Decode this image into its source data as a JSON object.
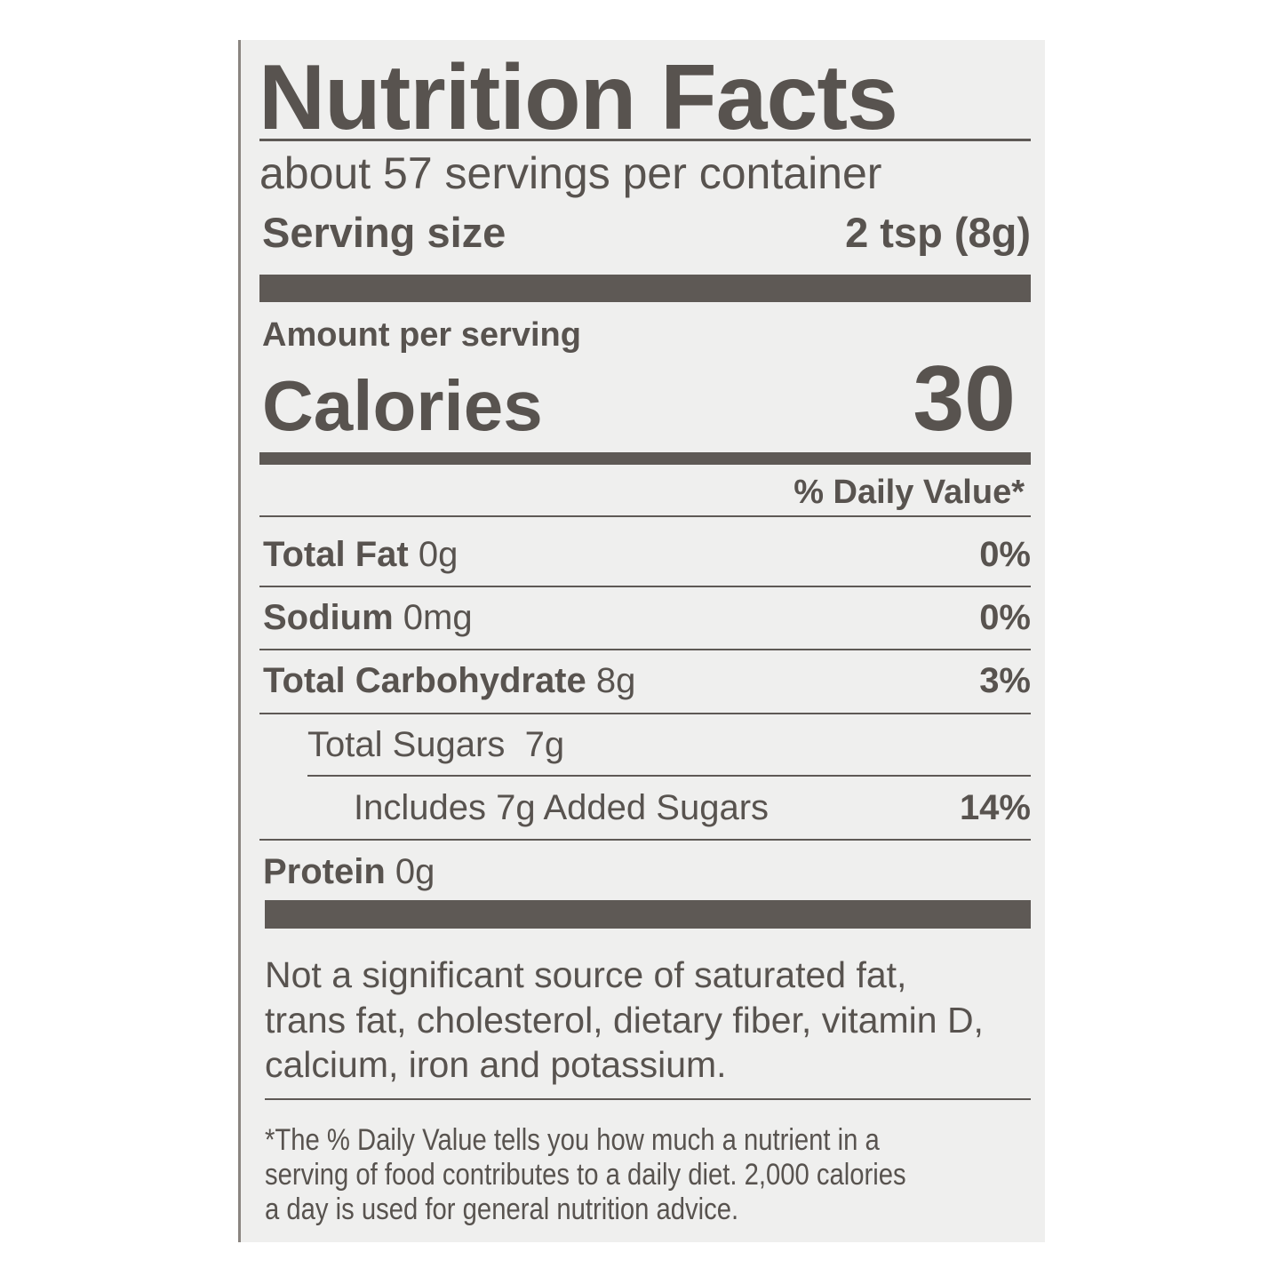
{
  "title": "Nutrition Facts",
  "servings_per_container": "about 57 servings per container",
  "serving_size": {
    "label": "Serving size",
    "value": "2 tsp (8g)"
  },
  "amount_per_serving": "Amount per serving",
  "calories": {
    "label": "Calories",
    "value": "30"
  },
  "daily_value_header": "% Daily Value*",
  "nutrients": [
    {
      "name": "Total Fat",
      "amount": "0g",
      "dv": "0%"
    },
    {
      "name": "Sodium",
      "amount": "0mg",
      "dv": "0%"
    },
    {
      "name": "Total Carbohydrate",
      "amount": "8g",
      "dv": "3%"
    },
    {
      "name": "Total Sugars",
      "amount": "7g",
      "dv": ""
    },
    {
      "name": "Includes 7g Added Sugars",
      "amount": "",
      "dv": "14%"
    },
    {
      "name": "Protein",
      "amount": "0g",
      "dv": ""
    }
  ],
  "not_significant": [
    "Not a significant source of saturated fat,",
    "trans fat, cholesterol, dietary fiber, vitamin D,",
    "calcium, iron and potassium."
  ],
  "footnote": [
    "*The % Daily Value tells you how much a nutrient in a",
    "serving of food contributes to a daily diet. 2,000 calories",
    "a day is used for general nutrition advice."
  ],
  "colors": {
    "ink": "#58534f",
    "label_bg": "#efefee"
  }
}
